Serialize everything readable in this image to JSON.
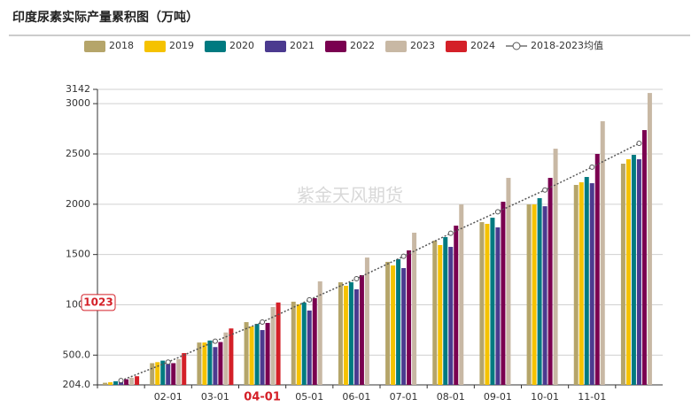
{
  "chart_data": {
    "type": "bar",
    "title": "印度尿素实际产量累积图（万吨）",
    "watermark": "紫金天风期货",
    "categories": [
      null,
      "02-01",
      "03-01",
      "04-01",
      "05-01",
      "06-01",
      "07-01",
      "08-01",
      "09-01",
      "10-01",
      "11-01",
      null
    ],
    "series": [
      {
        "name": "2018",
        "color": "#b5a56a",
        "values": [
          225,
          420,
          625,
          828,
          1031,
          1224,
          1427,
          1638,
          1822,
          1998,
          2192,
          2403
        ]
      },
      {
        "name": "2019",
        "color": "#f5c200",
        "values": [
          230,
          430,
          625,
          784,
          1004,
          1189,
          1391,
          1594,
          1805,
          1998,
          2218,
          2447
        ]
      },
      {
        "name": "2020",
        "color": "#007a80",
        "values": [
          240,
          445,
          645,
          810,
          1022,
          1224,
          1453,
          1673,
          1866,
          2060,
          2271,
          2491
        ]
      },
      {
        "name": "2021",
        "color": "#4b3a8f",
        "values": [
          250,
          410,
          580,
          749,
          943,
          1154,
          1365,
          1576,
          1770,
          1980,
          2209,
          2447
        ]
      },
      {
        "name": "2022",
        "color": "#7a0050",
        "values": [
          260,
          420,
          630,
          820,
          1066,
          1295,
          1541,
          1787,
          2025,
          2262,
          2500,
          2737
        ]
      },
      {
        "name": "2023",
        "color": "#c8b8a4",
        "values": [
          275,
          460,
          725,
          978,
          1233,
          1470,
          1717,
          1998,
          2262,
          2552,
          2825,
          3106
        ]
      },
      {
        "name": "2024",
        "color": "#d42028",
        "values": [
          290,
          520,
          765,
          1023,
          null,
          null,
          null,
          null,
          null,
          null,
          null,
          null
        ]
      },
      {
        "name": "2018-2023均值",
        "color": "#555555",
        "line": true,
        "values": [
          246.7,
          430.8,
          638.3,
          828.2,
          1049.8,
          1259.3,
          1482.3,
          1711,
          1925,
          2141.7,
          2369.2,
          2605.2
        ]
      }
    ],
    "ylim": [
      204,
      3142
    ],
    "yticks": [
      {
        "value": 204,
        "label": "204.0"
      },
      {
        "value": 500,
        "label": "500.0"
      },
      1000,
      1500,
      2000,
      2500,
      3000,
      3142
    ],
    "grid": true,
    "axis_pointer": {
      "x": "04-01",
      "y": 1023
    }
  }
}
